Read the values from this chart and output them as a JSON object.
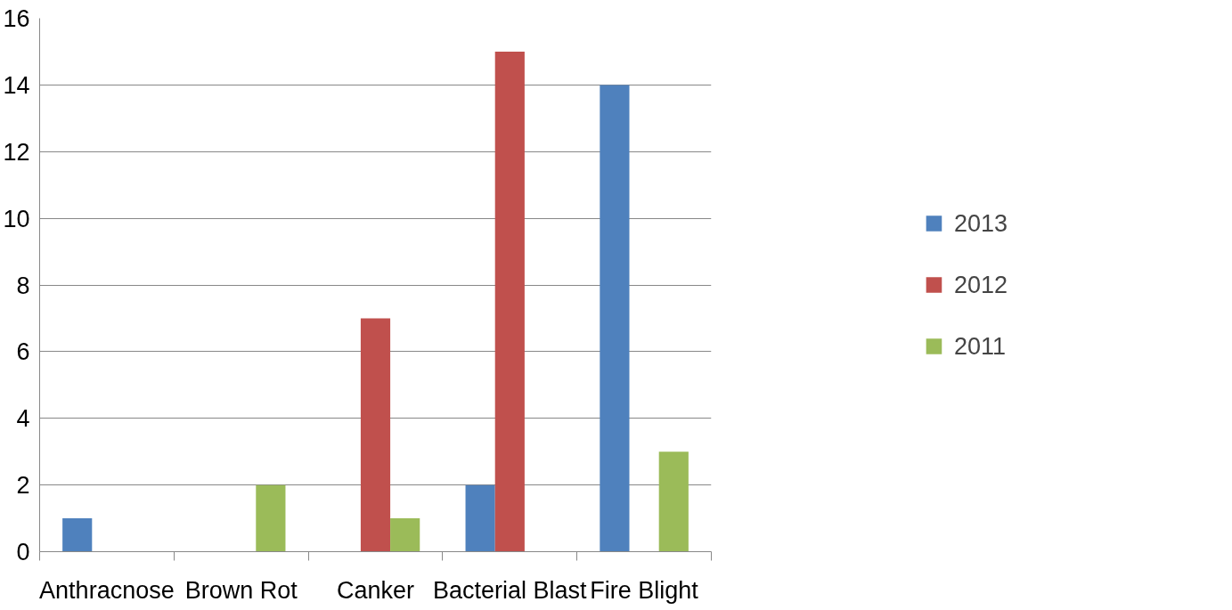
{
  "chart_data": {
    "type": "bar",
    "categories": [
      "Anthracnose",
      "Brown Rot",
      "Canker",
      "Bacterial Blast",
      "Fire Blight"
    ],
    "series": [
      {
        "name": "2013",
        "color": "#4f81bd",
        "values": [
          1,
          0,
          0,
          2,
          14
        ]
      },
      {
        "name": "2012",
        "color": "#c0504d",
        "values": [
          0,
          0,
          7,
          15,
          0
        ]
      },
      {
        "name": "2011",
        "color": "#9bbb59",
        "values": [
          0,
          2,
          1,
          0,
          3
        ]
      }
    ],
    "ylim": [
      0,
      16
    ],
    "yticks": [
      0,
      2,
      4,
      6,
      8,
      10,
      12,
      14,
      16
    ],
    "grid": "y",
    "legend": "right"
  }
}
